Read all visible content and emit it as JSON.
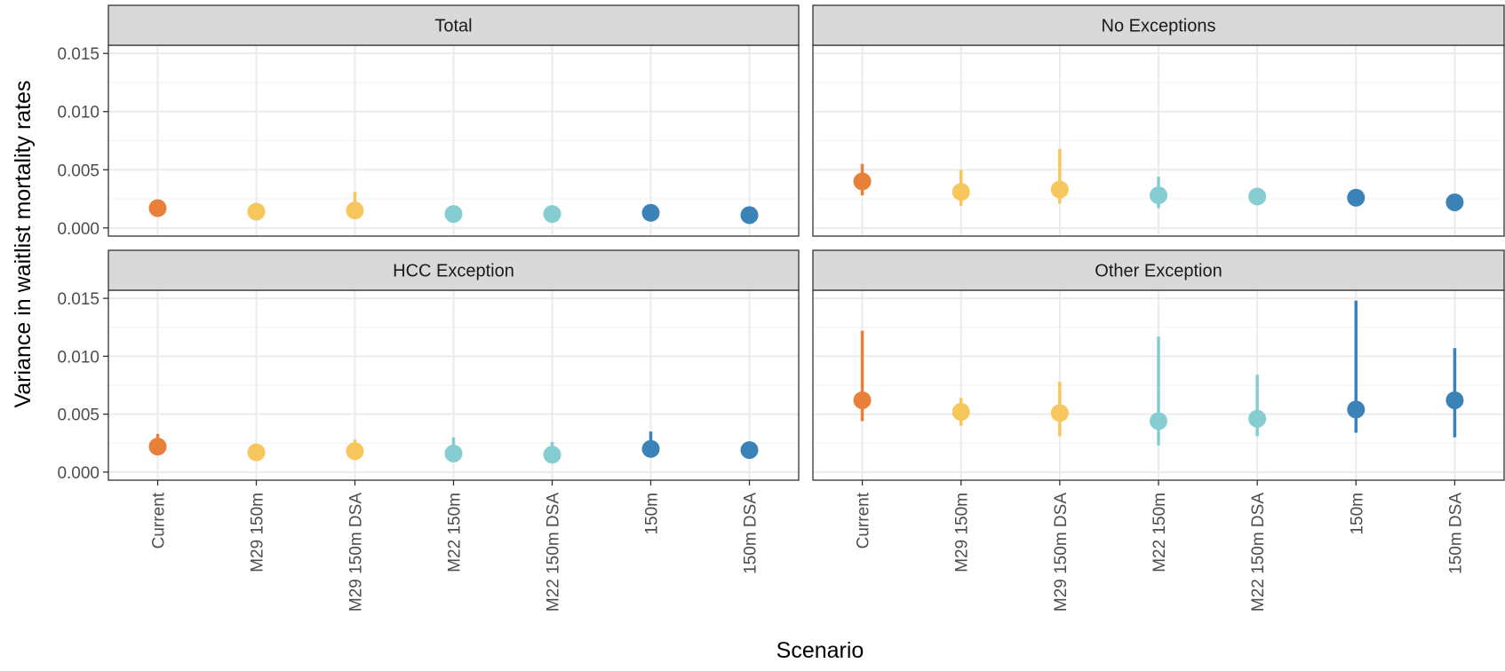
{
  "chart_data": {
    "type": "scatter",
    "ylabel": "Variance in waitlist mortality rates",
    "xlabel": "Scenario",
    "ylim": [
      -0.0007,
      0.0157
    ],
    "yticks": [
      "0.000",
      "0.005",
      "0.010",
      "0.015"
    ],
    "ytick_values": [
      0,
      0.005,
      0.01,
      0.015
    ],
    "categories": [
      "Current",
      "M29 150m",
      "M29 150m DSA",
      "M22 150m",
      "M22 150m DSA",
      "150m",
      "150m DSA"
    ],
    "category_colors": [
      "#E8803A",
      "#F7C65C",
      "#F7C65C",
      "#86CDD2",
      "#86CDD2",
      "#3A82B8",
      "#3A82B8"
    ],
    "grid": true,
    "panels": [
      {
        "name": "Total",
        "values": [
          0.0017,
          0.0014,
          0.0015,
          0.0012,
          0.0012,
          0.0013,
          0.0011
        ],
        "lower": [
          0.0013,
          0.0011,
          0.001,
          0.0009,
          0.0009,
          0.001,
          0.0009
        ],
        "upper": [
          0.0021,
          0.0018,
          0.0031,
          0.0016,
          0.0016,
          0.0018,
          0.0015
        ]
      },
      {
        "name": "No Exceptions",
        "values": [
          0.004,
          0.0031,
          0.0033,
          0.0028,
          0.0027,
          0.0026,
          0.0022
        ],
        "lower": [
          0.0028,
          0.0019,
          0.0021,
          0.0017,
          0.0021,
          0.0021,
          0.0018
        ],
        "upper": [
          0.0055,
          0.005,
          0.0068,
          0.0044,
          0.0032,
          0.003,
          0.0026
        ]
      },
      {
        "name": "HCC Exception",
        "values": [
          0.0022,
          0.0017,
          0.0018,
          0.0016,
          0.0015,
          0.002,
          0.0019
        ],
        "lower": [
          0.0016,
          0.0012,
          0.0013,
          0.0011,
          0.0011,
          0.0014,
          0.0015
        ],
        "upper": [
          0.0033,
          0.0022,
          0.0028,
          0.003,
          0.0026,
          0.0035,
          0.0026
        ]
      },
      {
        "name": "Other Exception",
        "values": [
          0.0062,
          0.0052,
          0.0051,
          0.0044,
          0.0046,
          0.0054,
          0.0062
        ],
        "lower": [
          0.0044,
          0.004,
          0.0031,
          0.0023,
          0.0031,
          0.0034,
          0.003
        ],
        "upper": [
          0.0122,
          0.0064,
          0.0078,
          0.0117,
          0.0084,
          0.0148,
          0.0107
        ]
      }
    ]
  }
}
